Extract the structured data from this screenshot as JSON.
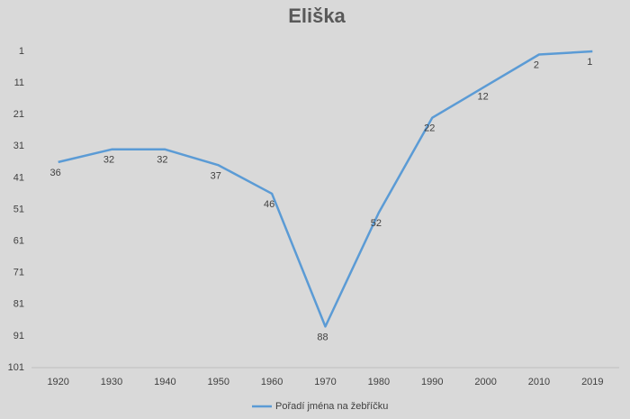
{
  "chart_data": {
    "type": "line",
    "title": "Eliška",
    "categories": [
      "1920",
      "1930",
      "1940",
      "1950",
      "1960",
      "1970",
      "1980",
      "1990",
      "2000",
      "2010",
      "2019"
    ],
    "series": [
      {
        "name": "Pořadí jména na žebříčku",
        "color": "#5b9bd5",
        "values": [
          36,
          32,
          32,
          37,
          46,
          88,
          52,
          22,
          12,
          2,
          1
        ]
      }
    ],
    "ylim": [
      101,
      1
    ],
    "yticks": [
      1,
      11,
      21,
      31,
      41,
      51,
      61,
      71,
      81,
      91,
      101
    ],
    "grid": false,
    "legend": "bottom"
  }
}
